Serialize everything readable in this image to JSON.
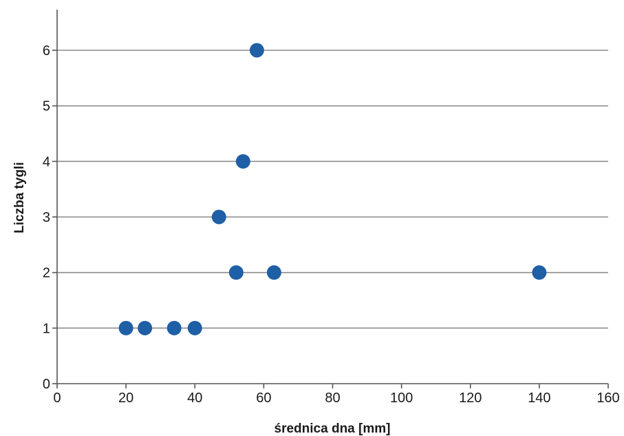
{
  "chart_data": {
    "type": "scatter",
    "title": "",
    "xlabel": "średnica dna [mm]",
    "ylabel": "Liczba tygli",
    "xlim": [
      0,
      160
    ],
    "ylim": [
      0,
      6
    ],
    "xticks": [
      0,
      20,
      40,
      60,
      80,
      100,
      120,
      140,
      160
    ],
    "yticks": [
      0,
      1,
      2,
      3,
      4,
      5,
      6
    ],
    "grid": {
      "horizontal": true,
      "vertical": false
    },
    "legend": "none",
    "series": [
      {
        "color": "#1f5fa6",
        "points": [
          {
            "x": 20,
            "y": 1
          },
          {
            "x": 25.5,
            "y": 1
          },
          {
            "x": 34,
            "y": 1
          },
          {
            "x": 40,
            "y": 1
          },
          {
            "x": 52,
            "y": 2
          },
          {
            "x": 63,
            "y": 2
          },
          {
            "x": 140,
            "y": 2
          },
          {
            "x": 47,
            "y": 3
          },
          {
            "x": 54,
            "y": 4
          },
          {
            "x": 58,
            "y": 6
          }
        ]
      }
    ]
  }
}
